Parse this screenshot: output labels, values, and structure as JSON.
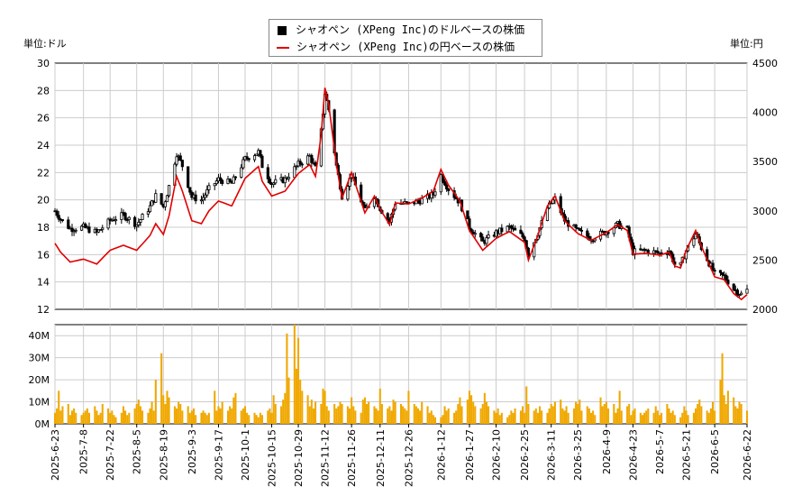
{
  "left_unit_label": "単位:ドル",
  "right_unit_label": "単位:円",
  "legend": [
    {
      "label": "シャオペン (XPeng Inc)のドルベースの株価",
      "color": "#000000",
      "type": "box"
    },
    {
      "label": "シャオペン (XPeng Inc)の円ベースの株価",
      "color": "#e00000",
      "type": "line"
    }
  ],
  "colors": {
    "candle": "#000000",
    "yen_line": "#e00000",
    "volume": "#f0a800",
    "grid": "#cccccc"
  },
  "chart_data": {
    "type": "line",
    "title": "",
    "price_axis_left": {
      "label": "単位:ドル",
      "min": 12,
      "max": 30,
      "ticks": [
        12,
        14,
        16,
        18,
        20,
        22,
        24,
        26,
        28,
        30
      ]
    },
    "price_axis_right": {
      "label": "単位:円",
      "min": 2000,
      "max": 4500,
      "ticks": [
        2000,
        2500,
        3000,
        3500,
        4000,
        4500
      ]
    },
    "volume_axis": {
      "min": 0,
      "max": 45,
      "unit": "M",
      "ticks": [
        "0M",
        "10M",
        "20M",
        "30M",
        "40M"
      ]
    },
    "x_ticks": [
      "2025-6-23",
      "2025-7-8",
      "2025-7-22",
      "2025-8-5",
      "2025-8-19",
      "2025-9-3",
      "2025-9-17",
      "2025-10-1",
      "2025-10-15",
      "2025-10-29",
      "2025-11-12",
      "2025-11-26",
      "2025-12-11",
      "2025-12-26",
      "2026-1-12",
      "2026-1-27",
      "2026-2-10",
      "2026-2-25",
      "2026-3-11",
      "2026-3-25",
      "2026-4-9",
      "2026-4-23",
      "2026-5-7",
      "2026-5-21",
      "2026-6-5",
      "2026-6-22"
    ],
    "anchors_usd": [
      [
        "2025-6-23",
        19.2
      ],
      [
        "2025-6-26",
        18.6
      ],
      [
        "2025-7-1",
        17.9
      ],
      [
        "2025-7-8",
        18.0
      ],
      [
        "2025-7-15",
        17.6
      ],
      [
        "2025-7-22",
        18.5
      ],
      [
        "2025-7-29",
        18.9
      ],
      [
        "2025-8-5",
        18.2
      ],
      [
        "2025-8-12",
        19.5
      ],
      [
        "2025-8-15",
        20.3
      ],
      [
        "2025-8-19",
        19.5
      ],
      [
        "2025-8-22",
        21.0
      ],
      [
        "2025-8-26",
        23.4
      ],
      [
        "2025-8-29",
        22.5
      ],
      [
        "2025-9-3",
        20.2
      ],
      [
        "2025-9-8",
        20.0
      ],
      [
        "2025-9-12",
        20.8
      ],
      [
        "2025-9-17",
        21.5
      ],
      [
        "2025-9-24",
        21.2
      ],
      [
        "2025-10-1",
        23.0
      ],
      [
        "2025-10-8",
        23.5
      ],
      [
        "2025-10-10",
        22.5
      ],
      [
        "2025-10-15",
        21.2
      ],
      [
        "2025-10-22",
        21.5
      ],
      [
        "2025-10-29",
        22.6
      ],
      [
        "2025-11-4",
        23.2
      ],
      [
        "2025-11-7",
        22.3
      ],
      [
        "2025-11-10",
        25.0
      ],
      [
        "2025-11-12",
        27.8
      ],
      [
        "2025-11-14",
        26.6
      ],
      [
        "2025-11-18",
        22.5
      ],
      [
        "2025-11-21",
        20.3
      ],
      [
        "2025-11-26",
        21.8
      ],
      [
        "2025-12-3",
        19.2
      ],
      [
        "2025-12-8",
        20.3
      ],
      [
        "2025-12-11",
        19.4
      ],
      [
        "2025-12-16",
        18.4
      ],
      [
        "2025-12-19",
        19.8
      ],
      [
        "2025-12-26",
        19.7
      ],
      [
        "2026-1-2",
        20.0
      ],
      [
        "2026-1-8",
        20.4
      ],
      [
        "2026-1-12",
        21.8
      ],
      [
        "2026-1-16",
        20.8
      ],
      [
        "2026-1-22",
        19.8
      ],
      [
        "2026-1-27",
        18.0
      ],
      [
        "2026-2-3",
        16.9
      ],
      [
        "2026-2-10",
        17.6
      ],
      [
        "2026-2-17",
        18.0
      ],
      [
        "2026-2-25",
        17.2
      ],
      [
        "2026-2-27",
        16.0
      ],
      [
        "2026-3-4",
        17.6
      ],
      [
        "2026-3-9",
        19.4
      ],
      [
        "2026-3-13",
        20.1
      ],
      [
        "2026-3-18",
        18.5
      ],
      [
        "2026-3-25",
        17.7
      ],
      [
        "2026-4-1",
        17.2
      ],
      [
        "2026-4-9",
        17.7
      ],
      [
        "2026-4-15",
        18.2
      ],
      [
        "2026-4-20",
        17.8
      ],
      [
        "2026-4-23",
        16.2
      ],
      [
        "2026-4-30",
        16.3
      ],
      [
        "2026-5-7",
        16.1
      ],
      [
        "2026-5-12",
        16.3
      ],
      [
        "2026-5-15",
        15.3
      ],
      [
        "2026-5-18",
        15.2
      ],
      [
        "2026-5-21",
        16.3
      ],
      [
        "2026-5-26",
        17.5
      ],
      [
        "2026-5-29",
        16.5
      ],
      [
        "2026-6-2",
        15.4
      ],
      [
        "2026-6-5",
        14.6
      ],
      [
        "2026-6-10",
        14.4
      ],
      [
        "2026-6-15",
        13.5
      ],
      [
        "2026-6-19",
        13.1
      ],
      [
        "2026-6-22",
        13.4
      ]
    ],
    "anchors_jpy": [
      [
        "2025-6-23",
        2670
      ],
      [
        "2025-6-26",
        2580
      ],
      [
        "2025-7-1",
        2480
      ],
      [
        "2025-7-8",
        2510
      ],
      [
        "2025-7-15",
        2460
      ],
      [
        "2025-7-22",
        2600
      ],
      [
        "2025-7-29",
        2650
      ],
      [
        "2025-8-5",
        2600
      ],
      [
        "2025-8-12",
        2750
      ],
      [
        "2025-8-15",
        2870
      ],
      [
        "2025-8-19",
        2760
      ],
      [
        "2025-8-22",
        2950
      ],
      [
        "2025-8-26",
        3350
      ],
      [
        "2025-8-29",
        3200
      ],
      [
        "2025-9-3",
        2900
      ],
      [
        "2025-9-8",
        2870
      ],
      [
        "2025-9-12",
        3000
      ],
      [
        "2025-9-17",
        3100
      ],
      [
        "2025-9-24",
        3050
      ],
      [
        "2025-10-1",
        3330
      ],
      [
        "2025-10-8",
        3450
      ],
      [
        "2025-10-10",
        3300
      ],
      [
        "2025-10-15",
        3150
      ],
      [
        "2025-10-22",
        3200
      ],
      [
        "2025-10-29",
        3380
      ],
      [
        "2025-11-4",
        3470
      ],
      [
        "2025-11-7",
        3350
      ],
      [
        "2025-11-10",
        3770
      ],
      [
        "2025-11-12",
        4250
      ],
      [
        "2025-11-14",
        4080
      ],
      [
        "2025-11-18",
        3470
      ],
      [
        "2025-11-21",
        3130
      ],
      [
        "2025-11-26",
        3390
      ],
      [
        "2025-12-3",
        2980
      ],
      [
        "2025-12-8",
        3150
      ],
      [
        "2025-12-11",
        3020
      ],
      [
        "2025-12-16",
        2860
      ],
      [
        "2025-12-19",
        3080
      ],
      [
        "2025-12-26",
        3070
      ],
      [
        "2026-1-2",
        3130
      ],
      [
        "2026-1-8",
        3200
      ],
      [
        "2026-1-12",
        3420
      ],
      [
        "2026-1-16",
        3260
      ],
      [
        "2026-1-22",
        3100
      ],
      [
        "2026-1-27",
        2800
      ],
      [
        "2026-2-3",
        2600
      ],
      [
        "2026-2-10",
        2720
      ],
      [
        "2026-2-17",
        2790
      ],
      [
        "2026-2-25",
        2680
      ],
      [
        "2026-2-27",
        2500
      ],
      [
        "2026-3-4",
        2750
      ],
      [
        "2026-3-9",
        3050
      ],
      [
        "2026-3-13",
        3150
      ],
      [
        "2026-3-18",
        2900
      ],
      [
        "2026-3-25",
        2770
      ],
      [
        "2026-4-1",
        2700
      ],
      [
        "2026-4-9",
        2780
      ],
      [
        "2026-4-15",
        2860
      ],
      [
        "2026-4-20",
        2800
      ],
      [
        "2026-4-23",
        2560
      ],
      [
        "2026-4-30",
        2570
      ],
      [
        "2026-5-7",
        2550
      ],
      [
        "2026-5-12",
        2580
      ],
      [
        "2026-5-15",
        2440
      ],
      [
        "2026-5-18",
        2420
      ],
      [
        "2026-5-21",
        2600
      ],
      [
        "2026-5-26",
        2800
      ],
      [
        "2026-5-29",
        2640
      ],
      [
        "2026-6-2",
        2460
      ],
      [
        "2026-6-5",
        2330
      ],
      [
        "2026-6-10",
        2300
      ],
      [
        "2026-6-15",
        2160
      ],
      [
        "2026-6-19",
        2100
      ],
      [
        "2026-6-22",
        2150
      ]
    ],
    "volume_millions": [
      5,
      7,
      15,
      6,
      8,
      9,
      4,
      6,
      7,
      5,
      4,
      5,
      6,
      7,
      5,
      8,
      6,
      4,
      5,
      9,
      7,
      5,
      6,
      4,
      3,
      5,
      8,
      6,
      4,
      5,
      7,
      9,
      11,
      8,
      6,
      5,
      7,
      10,
      6,
      20,
      32,
      13,
      9,
      15,
      12,
      8,
      7,
      10,
      9,
      6,
      8,
      5,
      6,
      7,
      4,
      5,
      6,
      5,
      4,
      5,
      15,
      6,
      8,
      7,
      10,
      6,
      8,
      7,
      12,
      14,
      6,
      7,
      8,
      5,
      4,
      5,
      4,
      3,
      5,
      4,
      6,
      7,
      5,
      13,
      9,
      8,
      11,
      14,
      41,
      21,
      45,
      25,
      39,
      20,
      15,
      13,
      8,
      11,
      7,
      10,
      9,
      16,
      15,
      8,
      6,
      9,
      7,
      8,
      10,
      9,
      8,
      7,
      12,
      8,
      6,
      5,
      11,
      12,
      9,
      10,
      8,
      7,
      6,
      16,
      9,
      7,
      8,
      6,
      11,
      10,
      9,
      8,
      7,
      6,
      15,
      9,
      8,
      7,
      6,
      10,
      8,
      5,
      6,
      4,
      3,
      3,
      4,
      8,
      6,
      7,
      5,
      6,
      9,
      12,
      8,
      11,
      15,
      13,
      10,
      8,
      7,
      9,
      14,
      10,
      8,
      6,
      5,
      7,
      4,
      5,
      3,
      4,
      6,
      5,
      7,
      6,
      8,
      5,
      17,
      9,
      6,
      7,
      5,
      8,
      6,
      5,
      7,
      9,
      8,
      10,
      11,
      7,
      6,
      8,
      5,
      7,
      10,
      9,
      11,
      6,
      8,
      7,
      5,
      6,
      4,
      12,
      8,
      9,
      10,
      7,
      9
    ],
    "series": [
      {
        "name": "シャオペン (XPeng Inc)のドルベースの株価",
        "axis": "left"
      },
      {
        "name": "シャオペン (XPeng Inc)の円ベースの株価",
        "axis": "right"
      }
    ],
    "grid": true,
    "legend_position": "top-center"
  }
}
